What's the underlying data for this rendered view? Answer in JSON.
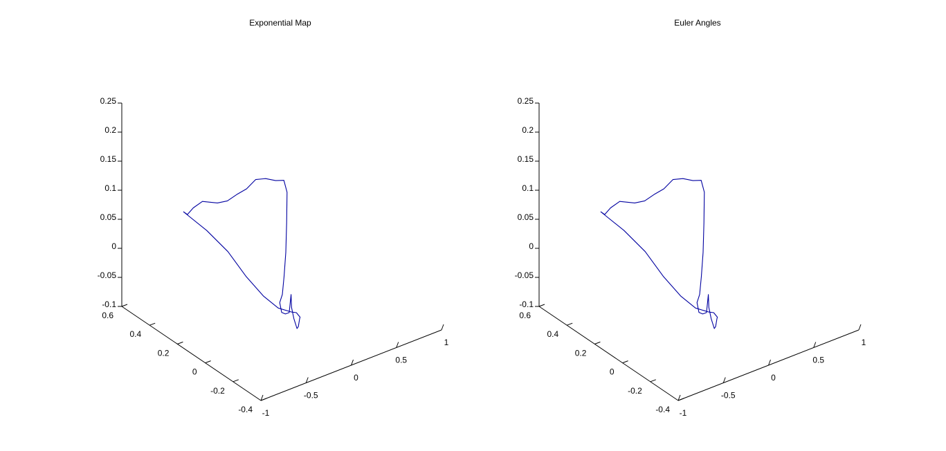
{
  "chart_data": [
    {
      "type": "line",
      "title": "Exponential Map",
      "xlabel": "",
      "ylabel": "",
      "zlabel": "",
      "xlim": [
        -1,
        1
      ],
      "ylim": [
        -0.4,
        0.6
      ],
      "zlim": [
        -0.1,
        0.25
      ],
      "xticks": [
        "-1",
        "-0.5",
        "0",
        "0.5",
        "1"
      ],
      "yticks": [
        "-0.4",
        "-0.2",
        "0",
        "0.2",
        "0.4",
        "0.6"
      ],
      "zticks": [
        "-0.1",
        "-0.05",
        "0",
        "0.05",
        "0.1",
        "0.15",
        "0.2",
        "0.25"
      ],
      "grid": false,
      "series": [
        {
          "color": "#0000a0",
          "points": [
            [
              -0.55,
              0.45,
              0.06
            ],
            [
              -0.52,
              0.44,
              0.055
            ],
            [
              -0.47,
              0.43,
              0.065
            ],
            [
              -0.4,
              0.41,
              0.075
            ],
            [
              -0.28,
              0.38,
              0.07
            ],
            [
              -0.2,
              0.36,
              0.072
            ],
            [
              -0.12,
              0.34,
              0.082
            ],
            [
              -0.05,
              0.32,
              0.09
            ],
            [
              0.02,
              0.3,
              0.105
            ],
            [
              0.1,
              0.28,
              0.105
            ],
            [
              0.18,
              0.26,
              0.1
            ],
            [
              0.24,
              0.24,
              0.1
            ],
            [
              0.26,
              0.23,
              0.08
            ],
            [
              0.24,
              0.22,
              0.03
            ],
            [
              0.2,
              0.2,
              -0.015
            ],
            [
              0.15,
              0.18,
              -0.05
            ],
            [
              0.1,
              0.16,
              -0.075
            ],
            [
              0.04,
              0.14,
              -0.082
            ],
            [
              0.0,
              0.1,
              -0.09
            ],
            [
              -0.02,
              0.06,
              -0.085
            ],
            [
              -0.04,
              0.02,
              -0.075
            ],
            [
              -0.05,
              0.0,
              -0.04
            ],
            [
              -0.06,
              -0.01,
              -0.06
            ],
            [
              -0.05,
              -0.02,
              -0.078
            ],
            [
              -0.03,
              -0.03,
              -0.095
            ],
            [
              0.0,
              -0.02,
              -0.095
            ],
            [
              0.03,
              -0.01,
              -0.085
            ],
            [
              0.05,
              0.0,
              -0.085
            ],
            [
              0.04,
              0.02,
              -0.08
            ],
            [
              -0.02,
              0.02,
              -0.075
            ],
            [
              -0.1,
              0.06,
              -0.07
            ],
            [
              -0.2,
              0.1,
              -0.05
            ],
            [
              -0.3,
              0.16,
              -0.02
            ],
            [
              -0.38,
              0.24,
              0.015
            ],
            [
              -0.46,
              0.34,
              0.04
            ],
            [
              -0.55,
              0.45,
              0.06
            ]
          ]
        }
      ]
    },
    {
      "type": "line",
      "title": "Euler Angles",
      "xlabel": "",
      "ylabel": "",
      "zlabel": "",
      "xlim": [
        -1,
        1
      ],
      "ylim": [
        -0.4,
        0.6
      ],
      "zlim": [
        -0.1,
        0.25
      ],
      "xticks": [
        "-1",
        "-0.5",
        "0",
        "0.5",
        "1"
      ],
      "yticks": [
        "-0.4",
        "-0.2",
        "0",
        "0.2",
        "0.4",
        "0.6"
      ],
      "zticks": [
        "-0.1",
        "-0.05",
        "0",
        "0.05",
        "0.1",
        "0.15",
        "0.2",
        "0.25"
      ],
      "grid": false,
      "series": [
        {
          "color": "#0000a0",
          "points": [
            [
              -0.55,
              0.45,
              0.06
            ],
            [
              -0.52,
              0.44,
              0.055
            ],
            [
              -0.47,
              0.43,
              0.065
            ],
            [
              -0.4,
              0.41,
              0.075
            ],
            [
              -0.28,
              0.38,
              0.07
            ],
            [
              -0.2,
              0.36,
              0.072
            ],
            [
              -0.12,
              0.34,
              0.082
            ],
            [
              -0.05,
              0.32,
              0.09
            ],
            [
              0.02,
              0.3,
              0.105
            ],
            [
              0.1,
              0.28,
              0.105
            ],
            [
              0.18,
              0.26,
              0.1
            ],
            [
              0.24,
              0.24,
              0.1
            ],
            [
              0.26,
              0.23,
              0.08
            ],
            [
              0.24,
              0.22,
              0.03
            ],
            [
              0.2,
              0.2,
              -0.015
            ],
            [
              0.15,
              0.18,
              -0.05
            ],
            [
              0.1,
              0.16,
              -0.075
            ],
            [
              0.04,
              0.14,
              -0.082
            ],
            [
              0.0,
              0.1,
              -0.09
            ],
            [
              -0.02,
              0.06,
              -0.085
            ],
            [
              -0.04,
              0.02,
              -0.075
            ],
            [
              -0.05,
              0.0,
              -0.04
            ],
            [
              -0.06,
              -0.01,
              -0.06
            ],
            [
              -0.05,
              -0.02,
              -0.078
            ],
            [
              -0.03,
              -0.03,
              -0.095
            ],
            [
              0.0,
              -0.02,
              -0.095
            ],
            [
              0.03,
              -0.01,
              -0.085
            ],
            [
              0.05,
              0.0,
              -0.085
            ],
            [
              0.04,
              0.02,
              -0.08
            ],
            [
              -0.02,
              0.02,
              -0.075
            ],
            [
              -0.1,
              0.06,
              -0.07
            ],
            [
              -0.2,
              0.1,
              -0.05
            ],
            [
              -0.3,
              0.16,
              -0.02
            ],
            [
              -0.38,
              0.24,
              0.015
            ],
            [
              -0.46,
              0.34,
              0.04
            ],
            [
              -0.55,
              0.45,
              0.06
            ]
          ]
        }
      ]
    }
  ]
}
